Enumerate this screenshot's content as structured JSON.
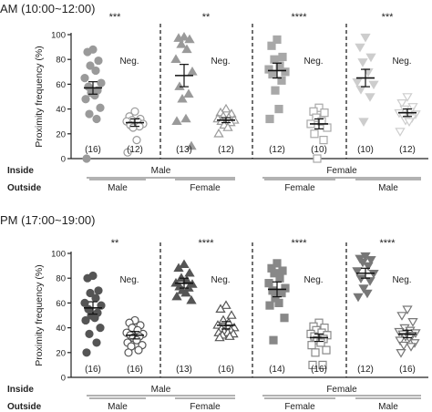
{
  "chart_data": {
    "type": "scatter",
    "ylabel": "Proximity frequency (%)",
    "ylim": [
      0,
      100
    ],
    "yticks": [
      0,
      20,
      40,
      60,
      80,
      100
    ],
    "neg_label": "Neg.",
    "row_labels": {
      "inside": "Inside",
      "outside": "Outside"
    },
    "panels": [
      {
        "title": "AM (10:00~12:00)",
        "inside_groups": [
          "Male",
          "Female"
        ],
        "groups": [
          {
            "outside": "Male",
            "significance": "***",
            "dots": {
              "n": "(16)",
              "shape": "circle",
              "color": "#9a9a9a",
              "filled": true,
              "mean": 57,
              "sem": 5,
              "values": [
                88,
                86,
                79,
                75,
                71,
                65,
                61,
                58,
                55,
                53,
                51,
                48,
                41,
                36,
                32,
                0
              ]
            },
            "neg": {
              "n": "(12)",
              "shape": "circle",
              "color": "#9a9a9a",
              "filled": false,
              "mean": 29,
              "sem": 3,
              "values": [
                38,
                34,
                32,
                31,
                30,
                30,
                28,
                27,
                26,
                25,
                15,
                5
              ]
            }
          },
          {
            "outside": "Female",
            "significance": "**",
            "dots": {
              "n": "(13)",
              "shape": "triangle-up",
              "color": "#9a9a9a",
              "filled": true,
              "mean": 67,
              "sem": 9,
              "values": [
                98,
                97,
                96,
                92,
                88,
                80,
                70,
                58,
                52,
                48,
                32,
                30,
                10
              ]
            },
            "neg": {
              "n": "(12)",
              "shape": "triangle-up",
              "color": "#9a9a9a",
              "filled": false,
              "mean": 31,
              "sem": 2,
              "values": [
                40,
                37,
                36,
                34,
                33,
                32,
                31,
                30,
                29,
                27,
                25,
                20
              ]
            }
          },
          {
            "outside": "Female",
            "significance": "****",
            "dots": {
              "n": "(12)",
              "shape": "square",
              "color": "#a8a8a8",
              "filled": true,
              "mean": 71,
              "sem": 6,
              "values": [
                96,
                91,
                82,
                80,
                75,
                72,
                70,
                68,
                63,
                55,
                40,
                32
              ]
            },
            "neg": {
              "n": "(10)",
              "shape": "square",
              "color": "#a8a8a8",
              "filled": false,
              "mean": 28,
              "sem": 4,
              "values": [
                41,
                38,
                37,
                33,
                30,
                28,
                25,
                20,
                15,
                0
              ]
            }
          },
          {
            "outside": "Male",
            "significance": "***",
            "dots": {
              "n": "(10)",
              "shape": "triangle-down",
              "color": "#cdcdcd",
              "filled": true,
              "mean": 65,
              "sem": 7,
              "values": [
                98,
                90,
                82,
                78,
                70,
                62,
                60,
                56,
                50,
                30
              ]
            },
            "neg": {
              "n": "(12)",
              "shape": "triangle-down",
              "color": "#cdcdcd",
              "filled": false,
              "mean": 37,
              "sem": 3,
              "values": [
                50,
                45,
                42,
                40,
                38,
                37,
                36,
                35,
                33,
                31,
                30,
                22
              ]
            }
          }
        ]
      },
      {
        "title": "PM (17:00~19:00)",
        "inside_groups": [
          "Male",
          "Female"
        ],
        "groups": [
          {
            "outside": "Male",
            "significance": "**",
            "dots": {
              "n": "(16)",
              "shape": "circle",
              "color": "#555555",
              "filled": true,
              "mean": 56,
              "sem": 5,
              "values": [
                82,
                80,
                70,
                68,
                64,
                60,
                58,
                55,
                52,
                50,
                48,
                46,
                40,
                35,
                28,
                20
              ]
            },
            "neg": {
              "n": "(16)",
              "shape": "circle",
              "color": "#555555",
              "filled": false,
              "mean": 34,
              "sem": 3,
              "values": [
                46,
                44,
                42,
                40,
                38,
                36,
                35,
                34,
                33,
                32,
                30,
                28,
                26,
                25,
                22,
                20
              ]
            }
          },
          {
            "outside": "Female",
            "significance": "****",
            "dots": {
              "n": "(13)",
              "shape": "triangle-up",
              "color": "#555555",
              "filled": true,
              "mean": 76,
              "sem": 4,
              "values": [
                91,
                88,
                84,
                80,
                78,
                76,
                75,
                73,
                72,
                70,
                68,
                65,
                62
              ]
            },
            "neg": {
              "n": "(16)",
              "shape": "triangle-up",
              "color": "#555555",
              "filled": false,
              "mean": 42,
              "sem": 3,
              "values": [
                58,
                55,
                50,
                46,
                44,
                42,
                40,
                39,
                38,
                37,
                36,
                36,
                35,
                34,
                33,
                32
              ]
            }
          },
          {
            "outside": "Female",
            "significance": "****",
            "dots": {
              "n": "(14)",
              "shape": "square",
              "color": "#888888",
              "filled": true,
              "mean": 71,
              "sem": 6,
              "values": [
                92,
                88,
                86,
                84,
                80,
                76,
                72,
                70,
                68,
                64,
                60,
                58,
                48,
                30
              ]
            },
            "neg": {
              "n": "(16)",
              "shape": "square",
              "color": "#888888",
              "filled": false,
              "mean": 32,
              "sem": 3,
              "values": [
                44,
                41,
                40,
                38,
                36,
                35,
                34,
                33,
                31,
                30,
                28,
                26,
                22,
                20,
                10,
                10
              ]
            }
          },
          {
            "outside": "Male",
            "significance": "****",
            "dots": {
              "n": "(12)",
              "shape": "triangle-down",
              "color": "#777777",
              "filled": true,
              "mean": 84,
              "sem": 4,
              "values": [
                98,
                96,
                95,
                93,
                90,
                86,
                84,
                80,
                78,
                72,
                68,
                65
              ]
            },
            "neg": {
              "n": "(16)",
              "shape": "triangle-down",
              "color": "#777777",
              "filled": false,
              "mean": 35,
              "sem": 3,
              "values": [
                55,
                50,
                45,
                40,
                38,
                37,
                36,
                35,
                34,
                33,
                32,
                30,
                28,
                26,
                25,
                20
              ]
            }
          }
        ]
      }
    ]
  }
}
